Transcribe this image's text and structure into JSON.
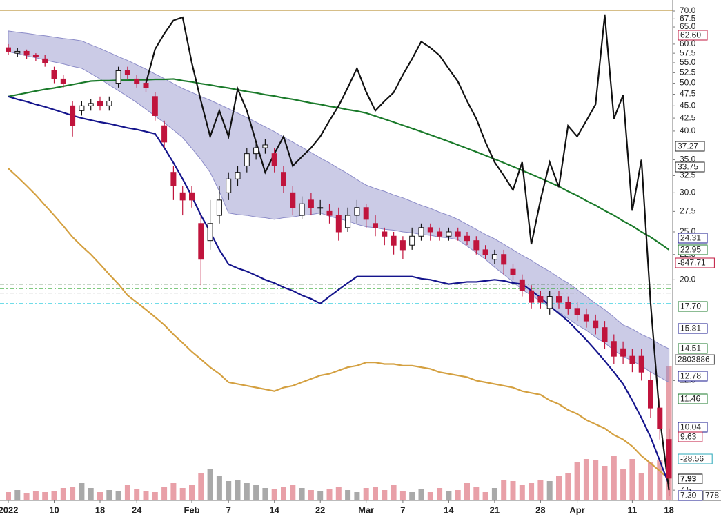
{
  "chart_data": {
    "type": "candlestick",
    "log_scale": true,
    "categories": [
      "2022",
      null,
      null,
      null,
      null,
      "10",
      null,
      null,
      null,
      null,
      "18",
      null,
      null,
      null,
      "24",
      null,
      null,
      null,
      null,
      null,
      "Feb",
      null,
      null,
      null,
      "7",
      null,
      null,
      null,
      null,
      "14",
      null,
      null,
      null,
      null,
      "22",
      null,
      null,
      null,
      null,
      "Mar",
      null,
      null,
      null,
      "7",
      null,
      null,
      null,
      null,
      "14",
      null,
      null,
      null,
      null,
      "21",
      null,
      null,
      null,
      null,
      "28",
      null,
      null,
      null,
      "Apr",
      null,
      null,
      null,
      null,
      null,
      "11",
      null,
      null,
      null,
      "18"
    ],
    "open": [
      59,
      57.5,
      58,
      57,
      56,
      53,
      51,
      45,
      44,
      45,
      46,
      45,
      50,
      53,
      51,
      50,
      47,
      41,
      33,
      30,
      30,
      26,
      24,
      27,
      30,
      32,
      34,
      36,
      37,
      36,
      33,
      30,
      27,
      29,
      28,
      27.5,
      27,
      25.5,
      27,
      28,
      26,
      25,
      24.5,
      24,
      23.5,
      24.5,
      25.5,
      25,
      24.5,
      25,
      24.5,
      24,
      23,
      22,
      22.5,
      21,
      20,
      19,
      18.5,
      17.5,
      18.5,
      18,
      17.5,
      17,
      16.5,
      16,
      15,
      14.5,
      14,
      14,
      12.5,
      11,
      9.5
    ],
    "high": [
      60,
      59,
      58.5,
      57.5,
      57,
      54,
      52,
      46,
      46,
      46.5,
      47,
      47,
      54,
      54,
      52,
      51,
      48,
      42,
      34,
      31,
      31,
      27,
      29,
      31,
      33,
      34,
      37,
      38,
      38.5,
      37,
      34,
      31,
      29.5,
      30,
      29,
      28.5,
      28,
      28,
      29,
      28.5,
      27,
      25.5,
      25,
      24.5,
      25.5,
      26,
      26,
      25.5,
      25.5,
      25.5,
      25,
      24.5,
      23.5,
      23,
      23,
      21.5,
      20.5,
      19.5,
      19,
      19,
      19,
      18.5,
      18,
      17.5,
      17,
      16.5,
      15.5,
      15,
      14.5,
      14.5,
      13,
      11.5,
      10
    ],
    "low": [
      57,
      56.5,
      56,
      55.5,
      54,
      50,
      49,
      39,
      43,
      44,
      44,
      44,
      49,
      51,
      49,
      48,
      42,
      37,
      29,
      27,
      28,
      19.5,
      23,
      26,
      29,
      31,
      33,
      35,
      36,
      33,
      30,
      27,
      26.5,
      27,
      27,
      26,
      24,
      25,
      26,
      25.5,
      24.5,
      23.5,
      22.5,
      22,
      23,
      24,
      24,
      24,
      24,
      24,
      23.5,
      22.5,
      22,
      21.5,
      20.5,
      20,
      18.5,
      17.5,
      17.5,
      17,
      17.5,
      17,
      16.5,
      16,
      15.5,
      14.5,
      13.5,
      13.5,
      13,
      12.5,
      10.5,
      9.5,
      7.3
    ],
    "close": [
      58,
      58,
      57,
      56.5,
      55,
      51,
      50,
      41,
      45,
      45.5,
      45,
      46,
      53,
      52,
      50,
      49,
      43,
      38,
      31,
      29,
      29,
      22,
      26,
      29,
      32,
      33,
      36,
      37,
      37.5,
      34,
      31,
      28,
      28.5,
      28,
      28,
      27,
      25,
      27,
      28,
      26.5,
      25.5,
      24.5,
      23.5,
      23,
      24.5,
      25.5,
      25,
      24.5,
      25,
      24.5,
      24,
      23,
      22.5,
      22.5,
      21.5,
      20.5,
      19,
      18,
      18,
      18.5,
      18,
      17.5,
      17,
      16.5,
      16,
      15,
      14,
      14,
      13.5,
      13,
      11,
      10,
      7.93
    ],
    "volume": [
      12,
      15,
      10,
      14,
      12,
      13,
      18,
      20,
      25,
      18,
      12,
      15,
      14,
      22,
      16,
      14,
      12,
      20,
      25,
      18,
      22,
      40,
      45,
      35,
      28,
      30,
      25,
      22,
      18,
      16,
      20,
      22,
      18,
      15,
      14,
      16,
      20,
      15,
      12,
      18,
      20,
      15,
      22,
      14,
      12,
      16,
      12,
      18,
      14,
      15,
      25,
      20,
      12,
      18,
      30,
      28,
      22,
      25,
      30,
      28,
      35,
      40,
      55,
      60,
      58,
      50,
      65,
      45,
      60,
      40,
      55,
      58,
      195
    ],
    "up_color": "#ffffff",
    "down_color": "#c0143c",
    "volume_up_color": "#a9a9a9",
    "volume_down_color": "#e8a0a8",
    "band": {
      "color": "#8c8cc8",
      "upper": [
        63.8,
        63.4,
        63.1,
        62.7,
        62.4,
        62,
        61.6,
        61.3,
        60.9,
        59.8,
        58.8,
        57.7,
        56.6,
        55.6,
        54.5,
        53.4,
        52.2,
        51.1,
        49.9,
        48.8,
        47.9,
        47,
        46.2,
        45.3,
        44.4,
        43.5,
        42.6,
        41.7,
        40.8,
        39.9,
        38.9,
        38,
        37.1,
        36.2,
        35.3,
        34.5,
        33.6,
        32.8,
        31.9,
        31.1,
        30.6,
        30.2,
        29.7,
        29.3,
        28.8,
        28.3,
        27.9,
        27.4,
        27,
        26.5,
        25.9,
        25.3,
        24.7,
        24.2,
        23.6,
        23,
        22.4,
        21.9,
        21.3,
        20.8,
        20.2,
        19.7,
        19.1,
        18.5,
        17.9,
        17.4,
        16.8,
        16.2,
        15.9,
        15.5,
        15.2,
        14.8,
        14.5
      ],
      "lower": [
        57.9,
        57.4,
        56.8,
        56.3,
        55.7,
        55.2,
        54.7,
        54.1,
        53.6,
        52.3,
        51,
        49.6,
        48.3,
        47,
        45.7,
        44.3,
        42.9,
        41.6,
        40.2,
        38.8,
        36.9,
        35,
        33,
        30.2,
        27.3,
        27.1,
        27,
        26.8,
        26.7,
        26.5,
        26.7,
        26.8,
        27,
        27.1,
        27.3,
        26.9,
        26.6,
        26.3,
        25.9,
        25.6,
        25.5,
        25.3,
        25.2,
        25,
        24.9,
        24.7,
        24.6,
        24.4,
        24.3,
        24.1,
        23.4,
        22.7,
        22,
        21.2,
        20.5,
        19.8,
        19.1,
        18.6,
        18.1,
        17.6,
        17.2,
        16.7,
        16.2,
        15.8,
        15.3,
        14.9,
        14.4,
        14,
        13.7,
        13.4,
        13,
        12.7,
        12.4
      ]
    },
    "series": [
      {
        "color": "#d4a040",
        "values": [
          33.6,
          32.3,
          31,
          29.7,
          28.3,
          27,
          25.7,
          24.4,
          23.4,
          22.5,
          21.5,
          20.5,
          19.6,
          18.6,
          18,
          17.4,
          16.8,
          16.2,
          15.5,
          14.9,
          14.3,
          13.8,
          13.3,
          12.9,
          12.4,
          12.3,
          12.2,
          12.1,
          12,
          11.9,
          12.1,
          12.2,
          12.4,
          12.6,
          12.8,
          12.9,
          13.1,
          13.3,
          13.4,
          13.6,
          13.6,
          13.5,
          13.5,
          13.4,
          13.4,
          13.3,
          13.2,
          13,
          12.9,
          12.8,
          12.7,
          12.5,
          12.4,
          12.3,
          12.2,
          12.1,
          11.9,
          11.8,
          11.7,
          11.4,
          11.2,
          10.9,
          10.7,
          10.4,
          10.2,
          10,
          9.7,
          9.5,
          9.2,
          8.8,
          8.5,
          8.2,
          7.9
        ]
      },
      {
        "color": "#1a7a2a",
        "values": [
          47,
          47.4,
          47.8,
          48.2,
          48.6,
          48.9,
          49.3,
          49.7,
          50.1,
          50.5,
          50.6,
          50.6,
          50.7,
          50.7,
          50.8,
          50.8,
          50.9,
          50.9,
          51,
          50.6,
          50.3,
          49.9,
          49.6,
          49.2,
          48.9,
          48.5,
          48.1,
          47.8,
          47.4,
          47.1,
          46.7,
          46.4,
          46,
          45.6,
          45.3,
          44.9,
          44.6,
          44.2,
          43.9,
          43.5,
          42.9,
          42.3,
          41.7,
          41.1,
          40.5,
          39.9,
          39.3,
          38.7,
          38.1,
          37.5,
          36.9,
          36.3,
          35.7,
          35.1,
          34.5,
          33.9,
          33.3,
          32.7,
          32.1,
          31.5,
          30.9,
          30.2,
          29.6,
          28.9,
          28.3,
          27.6,
          27,
          26.3,
          25.7,
          25,
          24.4,
          23.7,
          23
        ]
      },
      {
        "color": "#14148c",
        "values": [
          47,
          46.4,
          45.9,
          45.3,
          44.8,
          44.2,
          43.6,
          43,
          42.5,
          42.1,
          41.7,
          41.4,
          41,
          40.6,
          40.3,
          39.9,
          39.5,
          37,
          34.5,
          32,
          29.5,
          27,
          25,
          23,
          21.5,
          21.1,
          20.8,
          20.4,
          20,
          19.7,
          19.3,
          19,
          18.6,
          18.3,
          17.9,
          18.5,
          19.1,
          19.7,
          20.3,
          20.3,
          20.3,
          20.3,
          20.3,
          20.3,
          20.3,
          20.1,
          20,
          19.8,
          19.6,
          19.7,
          19.8,
          19.8,
          19.9,
          20,
          19.9,
          19.7,
          19.6,
          19,
          18.4,
          17.7,
          17.1,
          16.5,
          15.8,
          15.1,
          14.4,
          13.7,
          13,
          12.3,
          11.4,
          10.5,
          9.6,
          8.6,
          7.7
        ]
      },
      {
        "color": "#111111",
        "values": [
          null,
          null,
          null,
          null,
          null,
          null,
          null,
          null,
          null,
          null,
          null,
          null,
          null,
          null,
          null,
          50,
          58.6,
          63,
          67,
          68,
          55,
          46,
          39,
          44,
          39,
          48.7,
          44,
          38,
          33,
          36,
          39,
          34,
          35.5,
          37,
          39,
          42,
          45,
          49,
          53.6,
          48,
          44,
          46,
          47.9,
          52,
          56,
          60.7,
          59,
          56.9,
          53.5,
          50.4,
          46,
          42.4,
          38,
          34.6,
          32.5,
          30.4,
          34.6,
          23.6,
          29,
          34.6,
          30.8,
          41,
          39,
          42,
          45.3,
          68.7,
          42.4,
          47.3,
          27.6,
          35,
          17.9,
          10.5,
          7.5
        ]
      }
    ],
    "hlines": [
      {
        "value": 19.6,
        "color": "#1a5a1a"
      },
      {
        "value": 19.2,
        "color": "#33aa33"
      },
      {
        "value": 18.8,
        "color": "#888888"
      },
      {
        "value": 17.9,
        "color": "#40d0e0"
      }
    ],
    "ylim": [
      7.15,
      73.7
    ],
    "yticks": [
      {
        "value": 70,
        "label": "70.0"
      },
      {
        "value": 67.5,
        "label": "67.5"
      },
      {
        "value": 65,
        "label": "65.0"
      },
      {
        "value": 60,
        "label": "60.0"
      },
      {
        "value": 57.5,
        "label": "57.5"
      },
      {
        "value": 55,
        "label": "55.0"
      },
      {
        "value": 52.5,
        "label": "52.5"
      },
      {
        "value": 50,
        "label": "50.0"
      },
      {
        "value": 47.5,
        "label": "47.5"
      },
      {
        "value": 45,
        "label": "45.0"
      },
      {
        "value": 42.5,
        "label": "42.5"
      },
      {
        "value": 40,
        "label": "40.0"
      },
      {
        "value": 35,
        "label": "35.0"
      },
      {
        "value": 32.5,
        "label": "32.5"
      },
      {
        "value": 30,
        "label": "30.0"
      },
      {
        "value": 27.5,
        "label": "27.5"
      },
      {
        "value": 25,
        "label": "25.0"
      },
      {
        "value": 22.5,
        "label": "22.5"
      },
      {
        "value": 20,
        "label": "20.0"
      },
      {
        "value": 12.5,
        "label": "12.5"
      },
      {
        "value": 7.5,
        "label": "7.5"
      }
    ],
    "price_labels": [
      {
        "text": "62.60",
        "color": "#c0143c"
      },
      {
        "text": "37.27",
        "color": "#222222"
      },
      {
        "text": "33.75",
        "color": "#222222"
      },
      {
        "text": "24.31",
        "color": "#14148c"
      },
      {
        "text": "22.95",
        "color": "#1a7a2a"
      },
      {
        "text": "-847.71",
        "color": "#c0143c"
      },
      {
        "text": "17.70",
        "color": "#1a7a2a"
      },
      {
        "text": "15.81",
        "color": "#14148c"
      },
      {
        "text": "14.51",
        "color": "#1a7a2a"
      },
      {
        "text": "2803886",
        "color": "#555555"
      },
      {
        "text": "12.78",
        "color": "#14148c"
      },
      {
        "text": "11.46",
        "color": "#1a7a2a"
      },
      {
        "text": "10.04",
        "color": "#14148c"
      },
      {
        "text": "9.63",
        "color": "#c0143c"
      },
      {
        "text": "-28.56",
        "color": "#2aa8b8"
      },
      {
        "text": "7.93",
        "color": "#000000"
      },
      {
        "text": "7.30",
        "color": "#14148c"
      },
      {
        "text": "778",
        "color": "#555555"
      }
    ]
  }
}
